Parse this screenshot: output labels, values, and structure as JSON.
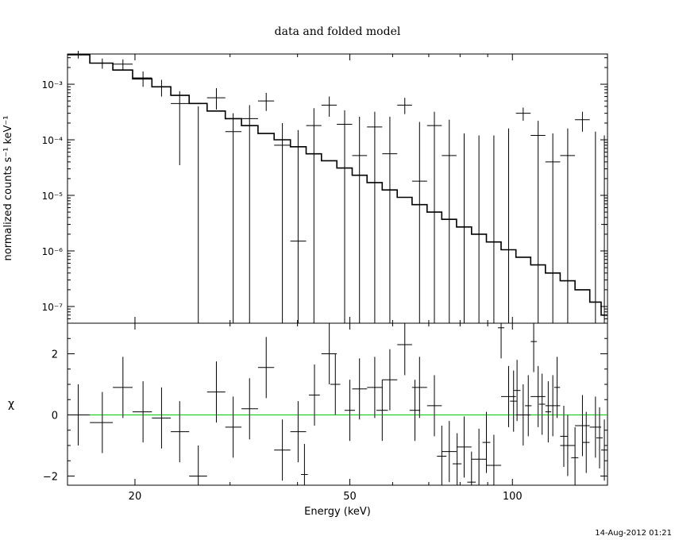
{
  "title": "data and folded model",
  "timestamp": "14-Aug-2012 01:21",
  "model_line_color": "#00cc00",
  "chart_data": [
    {
      "type": "line",
      "panel": "spectrum",
      "xlabel": "Energy (keV)",
      "ylabel": "normalized counts s⁻¹ keV⁻¹",
      "xscale": "log",
      "yscale": "log",
      "xlim": [
        15,
        150
      ],
      "ylim": [
        5e-08,
        0.0035
      ],
      "y_ticks": [
        {
          "value": 1e-07,
          "label": "10⁻⁷"
        },
        {
          "value": 1e-06,
          "label": "10⁻⁶"
        },
        {
          "value": 1e-05,
          "label": "10⁻⁵"
        },
        {
          "value": 0.0001,
          "label": "10⁻⁴"
        },
        {
          "value": 0.001,
          "label": "10⁻³"
        }
      ],
      "model_bins": [
        [
          15.0,
          16.5,
          0.0034
        ],
        [
          16.5,
          18.2,
          0.0024
        ],
        [
          18.2,
          19.8,
          0.0018
        ],
        [
          19.8,
          21.5,
          0.00125
        ],
        [
          21.5,
          23.3,
          0.0009
        ],
        [
          23.3,
          25.2,
          0.00063
        ],
        [
          25.2,
          27.2,
          0.00045
        ],
        [
          27.2,
          29.4,
          0.00033
        ],
        [
          29.4,
          31.5,
          0.00024
        ],
        [
          31.5,
          33.8,
          0.00018
        ],
        [
          33.8,
          36.2,
          0.00013
        ],
        [
          36.2,
          38.8,
          0.0001
        ],
        [
          38.8,
          41.5,
          7.5e-05
        ],
        [
          41.5,
          44.3,
          5.6e-05
        ],
        [
          44.3,
          47.3,
          4.2e-05
        ],
        [
          47.3,
          50.5,
          3.1e-05
        ],
        [
          50.5,
          53.8,
          2.3e-05
        ],
        [
          53.8,
          57.4,
          1.7e-05
        ],
        [
          57.4,
          61.2,
          1.25e-05
        ],
        [
          61.2,
          65.2,
          9.2e-06
        ],
        [
          65.2,
          69.5,
          6.8e-06
        ],
        [
          69.5,
          74.0,
          5e-06
        ],
        [
          74.0,
          78.8,
          3.7e-06
        ],
        [
          78.8,
          84.0,
          2.7e-06
        ],
        [
          84.0,
          89.5,
          2e-06
        ],
        [
          89.5,
          95.3,
          1.45e-06
        ],
        [
          95.3,
          101.5,
          1.05e-06
        ],
        [
          101.5,
          108.1,
          7.7e-07
        ],
        [
          108.1,
          115.1,
          5.6e-07
        ],
        [
          115.1,
          122.6,
          4e-07
        ],
        [
          122.6,
          130.6,
          2.9e-07
        ],
        [
          130.6,
          139.1,
          2e-07
        ],
        [
          139.1,
          146.0,
          1.2e-07
        ],
        [
          146.0,
          150.0,
          7e-08
        ]
      ],
      "data_points": [
        {
          "x": 15.7,
          "xlo": 15.0,
          "xhi": 16.5,
          "y": 0.0034,
          "ylo": 0.0029,
          "yhi": 0.004
        },
        {
          "x": 17.4,
          "xlo": 16.5,
          "xhi": 18.2,
          "y": 0.0024,
          "ylo": 0.0019,
          "yhi": 0.0029
        },
        {
          "x": 19.0,
          "xlo": 18.2,
          "xhi": 19.8,
          "y": 0.0023,
          "ylo": 0.0018,
          "yhi": 0.0028
        },
        {
          "x": 20.7,
          "xlo": 19.8,
          "xhi": 21.5,
          "y": 0.0013,
          "ylo": 0.0009,
          "yhi": 0.0017
        },
        {
          "x": 22.4,
          "xlo": 21.5,
          "xhi": 23.3,
          "y": 0.0009,
          "ylo": 0.0006,
          "yhi": 0.0012
        },
        {
          "x": 24.2,
          "xlo": 23.3,
          "xhi": 25.2,
          "y": 0.00045,
          "ylo": 3.5e-05,
          "yhi": 0.00075
        },
        {
          "x": 26.2,
          "xlo": 25.2,
          "xhi": 27.2,
          "y": 5e-08,
          "ylo": 5e-08,
          "yhi": 0.0004
        },
        {
          "x": 28.3,
          "xlo": 27.2,
          "xhi": 29.4,
          "y": 0.00057,
          "ylo": 0.00035,
          "yhi": 0.00085
        },
        {
          "x": 30.4,
          "xlo": 29.4,
          "xhi": 31.5,
          "y": 0.00014,
          "ylo": 5e-08,
          "yhi": 0.0003
        },
        {
          "x": 32.6,
          "xlo": 31.5,
          "xhi": 33.8,
          "y": 0.00024,
          "ylo": 5e-08,
          "yhi": 0.00042
        },
        {
          "x": 35.0,
          "xlo": 33.8,
          "xhi": 36.2,
          "y": 0.0005,
          "ylo": 0.00033,
          "yhi": 0.0007
        },
        {
          "x": 37.5,
          "xlo": 36.2,
          "xhi": 38.8,
          "y": 8e-05,
          "ylo": 5e-08,
          "yhi": 0.0002
        },
        {
          "x": 40.1,
          "xlo": 38.8,
          "xhi": 41.5,
          "y": 1.5e-06,
          "ylo": 5e-08,
          "yhi": 0.00015
        },
        {
          "x": 42.9,
          "xlo": 41.5,
          "xhi": 44.3,
          "y": 0.00018,
          "ylo": 5e-08,
          "yhi": 0.00037
        },
        {
          "x": 45.8,
          "xlo": 44.3,
          "xhi": 47.3,
          "y": 0.00042,
          "ylo": 0.00026,
          "yhi": 0.0006
        },
        {
          "x": 48.9,
          "xlo": 47.3,
          "xhi": 50.5,
          "y": 0.00019,
          "ylo": 5e-08,
          "yhi": 0.00034
        },
        {
          "x": 52.1,
          "xlo": 50.5,
          "xhi": 53.8,
          "y": 5.2e-05,
          "ylo": 5e-08,
          "yhi": 0.00026
        },
        {
          "x": 55.6,
          "xlo": 53.8,
          "xhi": 57.4,
          "y": 0.00017,
          "ylo": 5e-08,
          "yhi": 0.00032
        },
        {
          "x": 59.3,
          "xlo": 57.4,
          "xhi": 61.2,
          "y": 5.6e-05,
          "ylo": 5e-08,
          "yhi": 0.00026
        },
        {
          "x": 63.2,
          "xlo": 61.2,
          "xhi": 65.2,
          "y": 0.00042,
          "ylo": 0.00029,
          "yhi": 0.00057
        },
        {
          "x": 67.3,
          "xlo": 65.2,
          "xhi": 69.5,
          "y": 1.8e-05,
          "ylo": 5e-08,
          "yhi": 0.00021
        },
        {
          "x": 71.7,
          "xlo": 69.5,
          "xhi": 74.0,
          "y": 0.00018,
          "ylo": 5e-08,
          "yhi": 0.00032
        },
        {
          "x": 76.4,
          "xlo": 74.0,
          "xhi": 78.8,
          "y": 5.2e-05,
          "ylo": 5e-08,
          "yhi": 0.00023
        },
        {
          "x": 81.4,
          "xlo": 78.8,
          "xhi": 84.0,
          "y": 5e-08,
          "ylo": 5e-08,
          "yhi": 0.00013
        },
        {
          "x": 86.7,
          "xlo": 84.0,
          "xhi": 89.5,
          "y": 5e-08,
          "ylo": 5e-08,
          "yhi": 0.00012
        },
        {
          "x": 92.4,
          "xlo": 89.5,
          "xhi": 95.3,
          "y": 5e-08,
          "ylo": 5e-08,
          "yhi": 0.00012
        },
        {
          "x": 98.4,
          "xlo": 95.3,
          "xhi": 101.5,
          "y": 5e-08,
          "ylo": 5e-08,
          "yhi": 0.00016
        },
        {
          "x": 104.7,
          "xlo": 101.5,
          "xhi": 108.1,
          "y": 0.0003,
          "ylo": 0.00022,
          "yhi": 0.00038
        },
        {
          "x": 111.6,
          "xlo": 108.1,
          "xhi": 115.1,
          "y": 0.00012,
          "ylo": 5e-08,
          "yhi": 0.00022
        },
        {
          "x": 118.8,
          "xlo": 115.1,
          "xhi": 122.6,
          "y": 4e-05,
          "ylo": 5e-08,
          "yhi": 0.00013
        },
        {
          "x": 126.6,
          "xlo": 122.6,
          "xhi": 130.6,
          "y": 5.2e-05,
          "ylo": 5e-08,
          "yhi": 0.00016
        },
        {
          "x": 134.8,
          "xlo": 130.6,
          "xhi": 139.1,
          "y": 0.00023,
          "ylo": 0.00014,
          "yhi": 0.00032
        },
        {
          "x": 142.5,
          "xlo": 139.1,
          "xhi": 146.0,
          "y": 5e-08,
          "ylo": 5e-08,
          "yhi": 0.00014
        },
        {
          "x": 148.0,
          "xlo": 146.0,
          "xhi": 150.0,
          "y": 3e-06,
          "ylo": 5e-08,
          "yhi": 0.00012
        }
      ]
    },
    {
      "type": "scatter",
      "panel": "residuals",
      "xlabel": "Energy (keV)",
      "ylabel": "χ",
      "xscale": "log",
      "xlim": [
        15,
        150
      ],
      "ylim": [
        -2.3,
        3.0
      ],
      "x_ticks": [
        {
          "value": 20,
          "label": "20"
        },
        {
          "value": 50,
          "label": "50"
        },
        {
          "value": 100,
          "label": "100"
        }
      ],
      "y_ticks": [
        {
          "value": -2,
          "label": "−2"
        },
        {
          "value": 0,
          "label": "0"
        },
        {
          "value": 2,
          "label": "2"
        }
      ],
      "zero_line": 0,
      "points": [
        {
          "x": 15.7,
          "xlo": 15.0,
          "xhi": 16.5,
          "y": 0.0,
          "err": 1.0
        },
        {
          "x": 17.4,
          "xlo": 16.5,
          "xhi": 18.2,
          "y": -0.25,
          "err": 1.0
        },
        {
          "x": 19.0,
          "xlo": 18.2,
          "xhi": 19.8,
          "y": 0.9,
          "err": 1.0
        },
        {
          "x": 20.7,
          "xlo": 19.8,
          "xhi": 21.5,
          "y": 0.1,
          "err": 1.0
        },
        {
          "x": 22.4,
          "xlo": 21.5,
          "xhi": 23.3,
          "y": -0.1,
          "err": 1.0
        },
        {
          "x": 24.2,
          "xlo": 23.3,
          "xhi": 25.2,
          "y": -0.55,
          "err": 1.0
        },
        {
          "x": 26.2,
          "xlo": 25.2,
          "xhi": 27.2,
          "y": -2.0,
          "err": 1.0
        },
        {
          "x": 28.3,
          "xlo": 27.2,
          "xhi": 29.4,
          "y": 0.75,
          "err": 1.0
        },
        {
          "x": 30.4,
          "xlo": 29.4,
          "xhi": 31.5,
          "y": -0.4,
          "err": 1.0
        },
        {
          "x": 32.6,
          "xlo": 31.5,
          "xhi": 33.8,
          "y": 0.2,
          "err": 1.0
        },
        {
          "x": 35.0,
          "xlo": 33.8,
          "xhi": 36.2,
          "y": 1.55,
          "err": 1.0
        },
        {
          "x": 37.5,
          "xlo": 36.2,
          "xhi": 38.8,
          "y": -1.15,
          "err": 1.0
        },
        {
          "x": 40.1,
          "xlo": 38.8,
          "xhi": 41.5,
          "y": -0.55,
          "err": 1.0
        },
        {
          "x": 41.2,
          "xlo": 40.6,
          "xhi": 41.8,
          "y": -1.95,
          "err": 1.0
        },
        {
          "x": 43.0,
          "xlo": 42.0,
          "xhi": 44.0,
          "y": 0.65,
          "err": 1.0
        },
        {
          "x": 45.8,
          "xlo": 44.3,
          "xhi": 47.3,
          "y": 2.0,
          "err": 1.0
        },
        {
          "x": 47.0,
          "xlo": 46.0,
          "xhi": 48.0,
          "y": 1.0,
          "err": 1.0
        },
        {
          "x": 50.0,
          "xlo": 48.9,
          "xhi": 51.1,
          "y": 0.15,
          "err": 1.0
        },
        {
          "x": 52.1,
          "xlo": 50.5,
          "xhi": 53.8,
          "y": 0.85,
          "err": 1.0
        },
        {
          "x": 55.6,
          "xlo": 53.8,
          "xhi": 57.4,
          "y": 0.9,
          "err": 1.0
        },
        {
          "x": 57.4,
          "xlo": 56.0,
          "xhi": 58.8,
          "y": 0.15,
          "err": 1.0
        },
        {
          "x": 59.3,
          "xlo": 57.4,
          "xhi": 61.2,
          "y": 1.15,
          "err": 1.0
        },
        {
          "x": 63.2,
          "xlo": 61.2,
          "xhi": 65.2,
          "y": 2.3,
          "err": 1.0
        },
        {
          "x": 66.0,
          "xlo": 64.5,
          "xhi": 67.5,
          "y": 0.15,
          "err": 1.0
        },
        {
          "x": 67.3,
          "xlo": 65.2,
          "xhi": 69.5,
          "y": 0.9,
          "err": 1.0
        },
        {
          "x": 71.7,
          "xlo": 69.5,
          "xhi": 74.0,
          "y": 0.3,
          "err": 1.0
        },
        {
          "x": 74.0,
          "xlo": 72.5,
          "xhi": 75.5,
          "y": -1.35,
          "err": 1.0
        },
        {
          "x": 76.4,
          "xlo": 74.0,
          "xhi": 78.8,
          "y": -1.2,
          "err": 1.0
        },
        {
          "x": 79.0,
          "xlo": 77.5,
          "xhi": 80.5,
          "y": -1.6,
          "err": 1.0
        },
        {
          "x": 81.4,
          "xlo": 78.8,
          "xhi": 84.0,
          "y": -1.05,
          "err": 1.0
        },
        {
          "x": 84.0,
          "xlo": 82.5,
          "xhi": 85.5,
          "y": -2.2,
          "err": 1.0
        },
        {
          "x": 86.7,
          "xlo": 84.0,
          "xhi": 89.5,
          "y": -1.45,
          "err": 1.0
        },
        {
          "x": 89.5,
          "xlo": 88.0,
          "xhi": 91.0,
          "y": -0.9,
          "err": 1.0
        },
        {
          "x": 92.4,
          "xlo": 89.5,
          "xhi": 95.3,
          "y": -1.65,
          "err": 1.0
        },
        {
          "x": 95.3,
          "xlo": 94.0,
          "xhi": 96.6,
          "y": 2.85,
          "err": 1.0
        },
        {
          "x": 98.4,
          "xlo": 95.3,
          "xhi": 101.5,
          "y": 0.6,
          "err": 1.0
        },
        {
          "x": 100.5,
          "xlo": 99.0,
          "xhi": 102.0,
          "y": 0.45,
          "err": 1.0
        },
        {
          "x": 102.0,
          "xlo": 100.5,
          "xhi": 103.5,
          "y": 0.8,
          "err": 1.0
        },
        {
          "x": 104.7,
          "xlo": 101.5,
          "xhi": 108.1,
          "y": 0.0,
          "err": 1.0
        },
        {
          "x": 107.0,
          "xlo": 105.5,
          "xhi": 108.5,
          "y": 0.3,
          "err": 1.0
        },
        {
          "x": 109.5,
          "xlo": 108.1,
          "xhi": 111.0,
          "y": 2.4,
          "err": 1.0
        },
        {
          "x": 111.6,
          "xlo": 108.1,
          "xhi": 115.1,
          "y": 0.6,
          "err": 1.0
        },
        {
          "x": 113.5,
          "xlo": 112.0,
          "xhi": 115.0,
          "y": 0.35,
          "err": 1.0
        },
        {
          "x": 116.5,
          "xlo": 115.1,
          "xhi": 118.0,
          "y": 0.1,
          "err": 1.0
        },
        {
          "x": 118.8,
          "xlo": 115.1,
          "xhi": 122.6,
          "y": 0.3,
          "err": 1.0
        },
        {
          "x": 121.0,
          "xlo": 119.5,
          "xhi": 122.5,
          "y": 0.9,
          "err": 1.0
        },
        {
          "x": 124.5,
          "xlo": 122.6,
          "xhi": 126.5,
          "y": -0.7,
          "err": 1.0
        },
        {
          "x": 126.6,
          "xlo": 122.6,
          "xhi": 130.6,
          "y": -1.0,
          "err": 1.0
        },
        {
          "x": 130.6,
          "xlo": 128.5,
          "xhi": 132.5,
          "y": -1.4,
          "err": 1.0
        },
        {
          "x": 134.8,
          "xlo": 130.6,
          "xhi": 139.1,
          "y": -0.35,
          "err": 1.0
        },
        {
          "x": 137.0,
          "xlo": 135.0,
          "xhi": 139.0,
          "y": -0.9,
          "err": 1.0
        },
        {
          "x": 142.5,
          "xlo": 139.1,
          "xhi": 146.0,
          "y": -0.4,
          "err": 1.0
        },
        {
          "x": 145.0,
          "xlo": 143.0,
          "xhi": 147.0,
          "y": -0.75,
          "err": 1.0
        },
        {
          "x": 148.0,
          "xlo": 146.0,
          "xhi": 150.0,
          "y": -1.15,
          "err": 1.0
        }
      ]
    }
  ]
}
